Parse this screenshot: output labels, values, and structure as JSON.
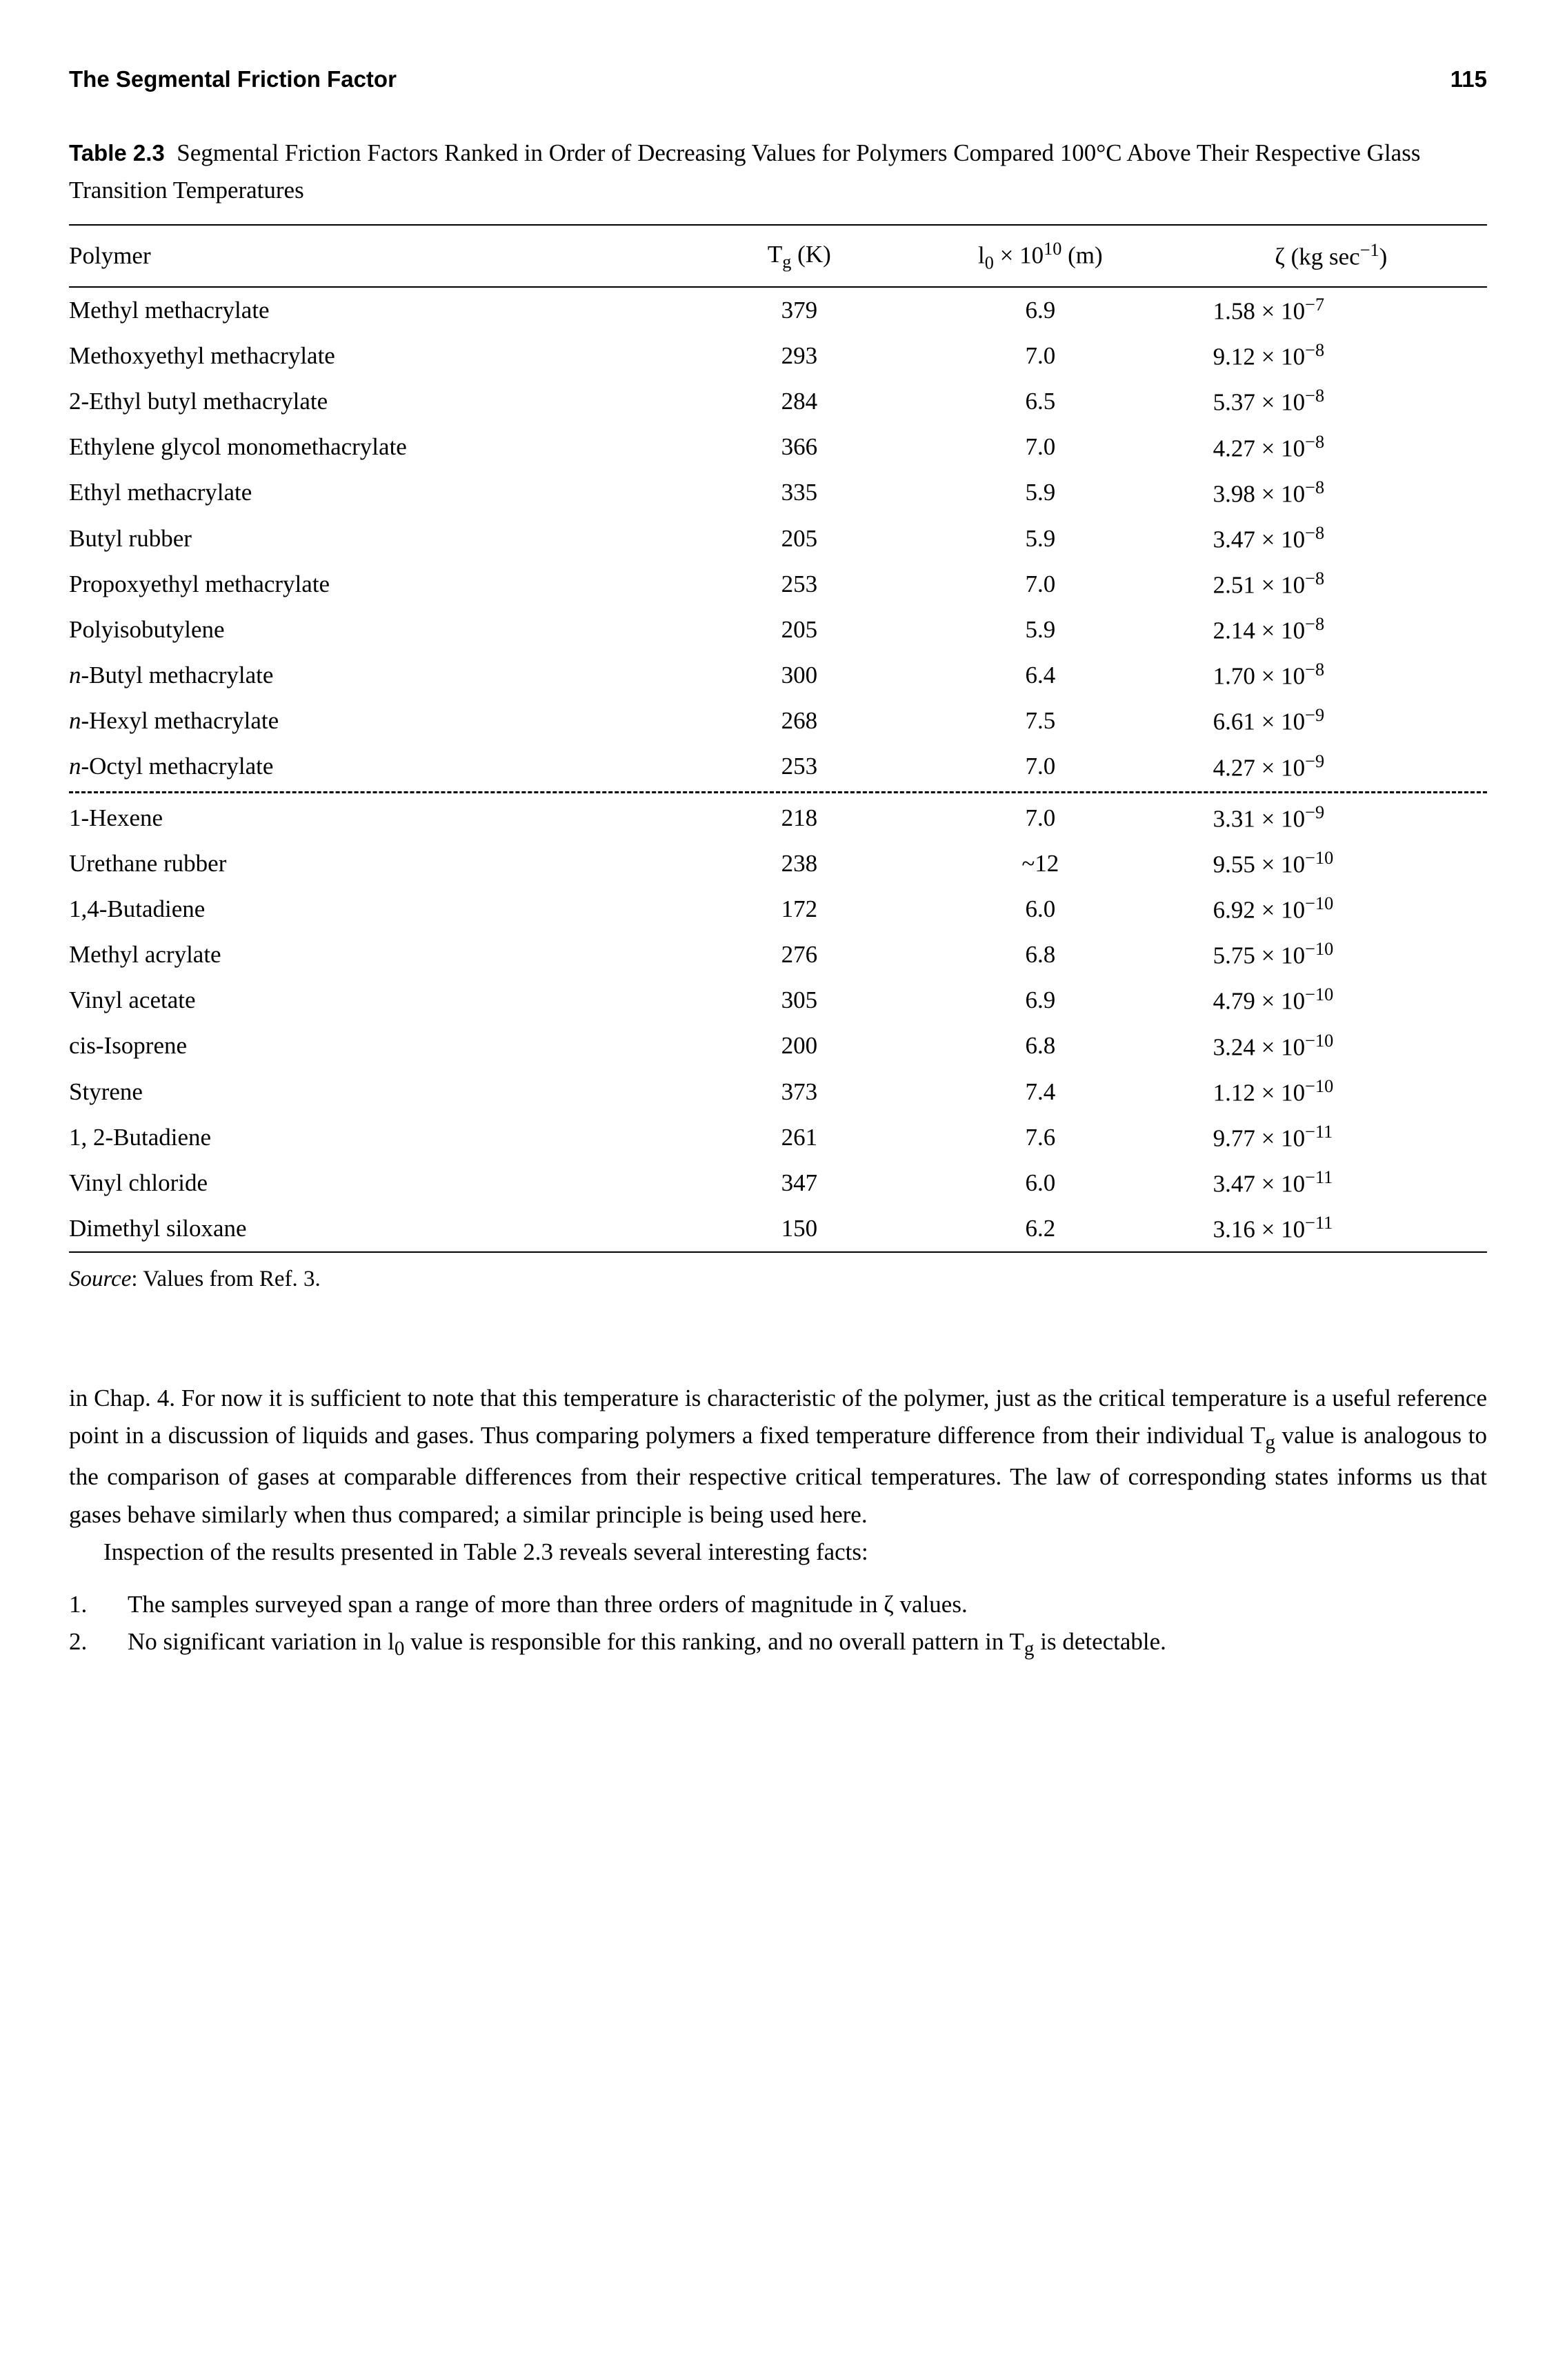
{
  "header": {
    "section_title": "The Segmental Friction Factor",
    "page_number": "115"
  },
  "table": {
    "label": "Table 2.3",
    "caption": "Segmental Friction Factors Ranked in Order of Decreasing Values for Polymers Compared 100°C Above Their Respective Glass Transition Temperatures",
    "columns": {
      "polymer": "Polymer",
      "tg_label_pre": "T",
      "tg_label_sub": "g",
      "tg_label_post": " (K)",
      "l0_label_pre": "l",
      "l0_label_sub": "0",
      "l0_label_mid": " × 10",
      "l0_label_sup": "10",
      "l0_label_post": " (m)",
      "zeta_label_pre": "ζ (kg sec",
      "zeta_label_sup": "−1",
      "zeta_label_post": ")"
    },
    "rows_top": [
      {
        "polymer": "Methyl methacrylate",
        "tg": "379",
        "l0": "6.9",
        "zeta_coef": "1.58",
        "zeta_exp": "−7"
      },
      {
        "polymer": "Methoxyethyl methacrylate",
        "tg": "293",
        "l0": "7.0",
        "zeta_coef": "9.12",
        "zeta_exp": "−8"
      },
      {
        "polymer": "2-Ethyl butyl methacrylate",
        "tg": "284",
        "l0": "6.5",
        "zeta_coef": "5.37",
        "zeta_exp": "−8"
      },
      {
        "polymer": "Ethylene glycol monomethacrylate",
        "tg": "366",
        "l0": "7.0",
        "zeta_coef": "4.27",
        "zeta_exp": "−8"
      },
      {
        "polymer": "Ethyl methacrylate",
        "tg": "335",
        "l0": "5.9",
        "zeta_coef": "3.98",
        "zeta_exp": "−8"
      },
      {
        "polymer": "Butyl rubber",
        "tg": "205",
        "l0": "5.9",
        "zeta_coef": "3.47",
        "zeta_exp": "−8"
      },
      {
        "polymer": "Propoxyethyl methacrylate",
        "tg": "253",
        "l0": "7.0",
        "zeta_coef": "2.51",
        "zeta_exp": "−8"
      },
      {
        "polymer": "Polyisobutylene",
        "tg": "205",
        "l0": "5.9",
        "zeta_coef": "2.14",
        "zeta_exp": "−8"
      },
      {
        "polymer_html": "<i>n</i>-Butyl methacrylate",
        "tg": "300",
        "l0": "6.4",
        "zeta_coef": "1.70",
        "zeta_exp": "−8"
      },
      {
        "polymer_html": "<i>n</i>-Hexyl methacrylate",
        "tg": "268",
        "l0": "7.5",
        "zeta_coef": "6.61",
        "zeta_exp": "−9"
      },
      {
        "polymer_html": "<i>n</i>-Octyl methacrylate",
        "tg": "253",
        "l0": "7.0",
        "zeta_coef": "4.27",
        "zeta_exp": "−9"
      }
    ],
    "rows_bottom": [
      {
        "polymer": "1-Hexene",
        "tg": "218",
        "l0": "7.0",
        "zeta_coef": "3.31",
        "zeta_exp": "−9"
      },
      {
        "polymer": "Urethane rubber",
        "tg": "238",
        "l0": "~12",
        "zeta_coef": "9.55",
        "zeta_exp": "−10"
      },
      {
        "polymer": "1,4-Butadiene",
        "tg": "172",
        "l0": "6.0",
        "zeta_coef": "6.92",
        "zeta_exp": "−10"
      },
      {
        "polymer": "Methyl acrylate",
        "tg": "276",
        "l0": "6.8",
        "zeta_coef": "5.75",
        "zeta_exp": "−10"
      },
      {
        "polymer": "Vinyl acetate",
        "tg": "305",
        "l0": "6.9",
        "zeta_coef": "4.79",
        "zeta_exp": "−10"
      },
      {
        "polymer": "cis-Isoprene",
        "tg": "200",
        "l0": "6.8",
        "zeta_coef": "3.24",
        "zeta_exp": "−10"
      },
      {
        "polymer": "Styrene",
        "tg": "373",
        "l0": "7.4",
        "zeta_coef": "1.12",
        "zeta_exp": "−10"
      },
      {
        "polymer": "1, 2-Butadiene",
        "tg": "261",
        "l0": "7.6",
        "zeta_coef": "9.77",
        "zeta_exp": "−11"
      },
      {
        "polymer": "Vinyl chloride",
        "tg": "347",
        "l0": "6.0",
        "zeta_coef": "3.47",
        "zeta_exp": "−11"
      },
      {
        "polymer": "Dimethyl siloxane",
        "tg": "150",
        "l0": "6.2",
        "zeta_coef": "3.16",
        "zeta_exp": "−11"
      }
    ],
    "source_label": "Source",
    "source_text": ": Values from Ref. 3."
  },
  "body": {
    "para1_html": "in Chap. 4. For now it is sufficient to note that this temperature is characteristic of the polymer, just as the critical temperature is a useful reference point in a discussion of liquids and gases. Thus comparing polymers a fixed temperature difference from their individual T<sub>g</sub> value is analogous to the comparison of gases at comparable differences from their respective critical temperatures. The law of corresponding states informs us that gases behave similarly when thus compared; a similar principle is being used here.",
    "para2": "Inspection of the results presented in Table 2.3 reveals several interesting facts:",
    "list": [
      "The samples surveyed span a range of more than three orders of magnitude in ζ values.",
      "No significant variation in l<sub>0</sub> value is responsible for this ranking, and no overall pattern in T<sub>g</sub> is detectable."
    ]
  }
}
